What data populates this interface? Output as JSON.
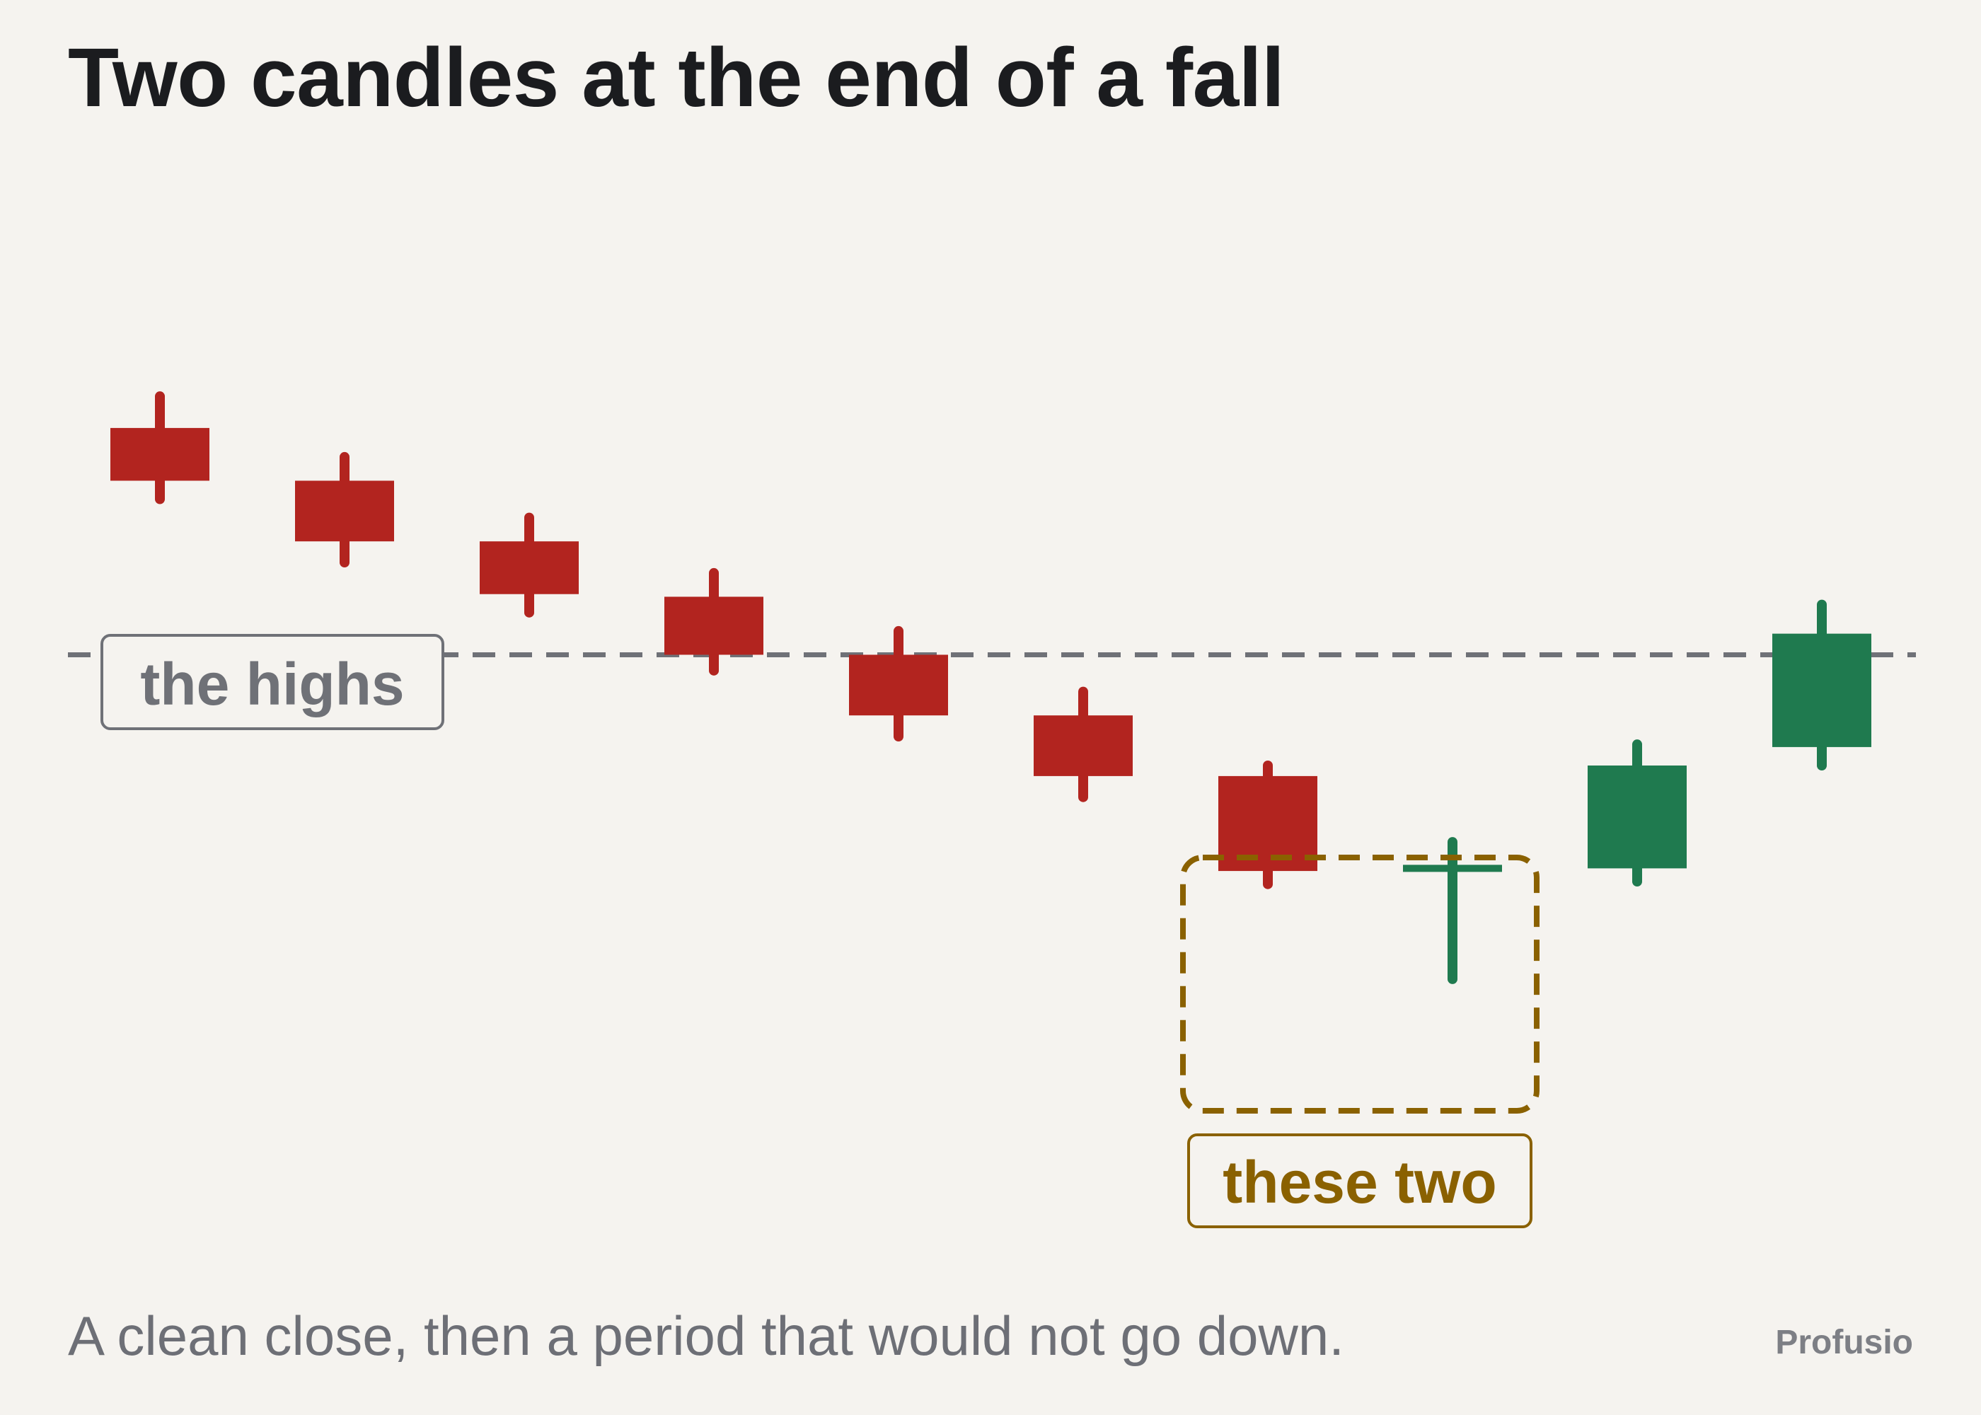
{
  "chart_data": {
    "type": "candlestick",
    "title": "Two candles at the end of a fall",
    "caption": "A clean close, then a period that would not go down.",
    "candles": [
      {
        "open": 48.6,
        "close": 46.6,
        "high": 49.8,
        "low": 45.9,
        "direction": "down"
      },
      {
        "open": 46.6,
        "close": 44.3,
        "high": 47.5,
        "low": 43.5,
        "direction": "down"
      },
      {
        "open": 44.3,
        "close": 42.3,
        "high": 45.2,
        "low": 41.6,
        "direction": "down"
      },
      {
        "open": 42.2,
        "close": 40.0,
        "high": 43.1,
        "low": 39.4,
        "direction": "down"
      },
      {
        "open": 40.0,
        "close": 37.7,
        "high": 40.9,
        "low": 36.9,
        "direction": "down"
      },
      {
        "open": 37.7,
        "close": 35.4,
        "high": 38.6,
        "low": 34.6,
        "direction": "down"
      },
      {
        "open": 35.4,
        "close": 31.8,
        "high": 35.8,
        "low": 31.3,
        "direction": "down"
      },
      {
        "open": 31.9,
        "close": 31.9,
        "high": 32.9,
        "low": 27.7,
        "direction": "up"
      },
      {
        "open": 31.9,
        "close": 35.8,
        "high": 36.6,
        "low": 31.4,
        "direction": "up"
      },
      {
        "open": 36.5,
        "close": 40.8,
        "high": 41.9,
        "low": 35.8,
        "direction": "up"
      }
    ],
    "reference_line": {
      "value": 40.0,
      "style": "dashed"
    },
    "annotations": [
      {
        "text": "the highs",
        "target": "reference_line"
      },
      {
        "text": "these two",
        "target_candles": [
          7,
          8
        ]
      }
    ],
    "ylim": [
      16,
      60
    ],
    "grid": false,
    "axes_visible": false,
    "colors": {
      "down": "#b2241f",
      "up": "#1f7a4f",
      "reference_line": "#6f7177",
      "highlight": "#8a6100",
      "highs_label": "#6f7177",
      "background": "#f5f3ef",
      "title": "#1b1c1f",
      "caption": "#6d6f76",
      "brand": "#7d7f85"
    }
  },
  "brand": "Profusio"
}
